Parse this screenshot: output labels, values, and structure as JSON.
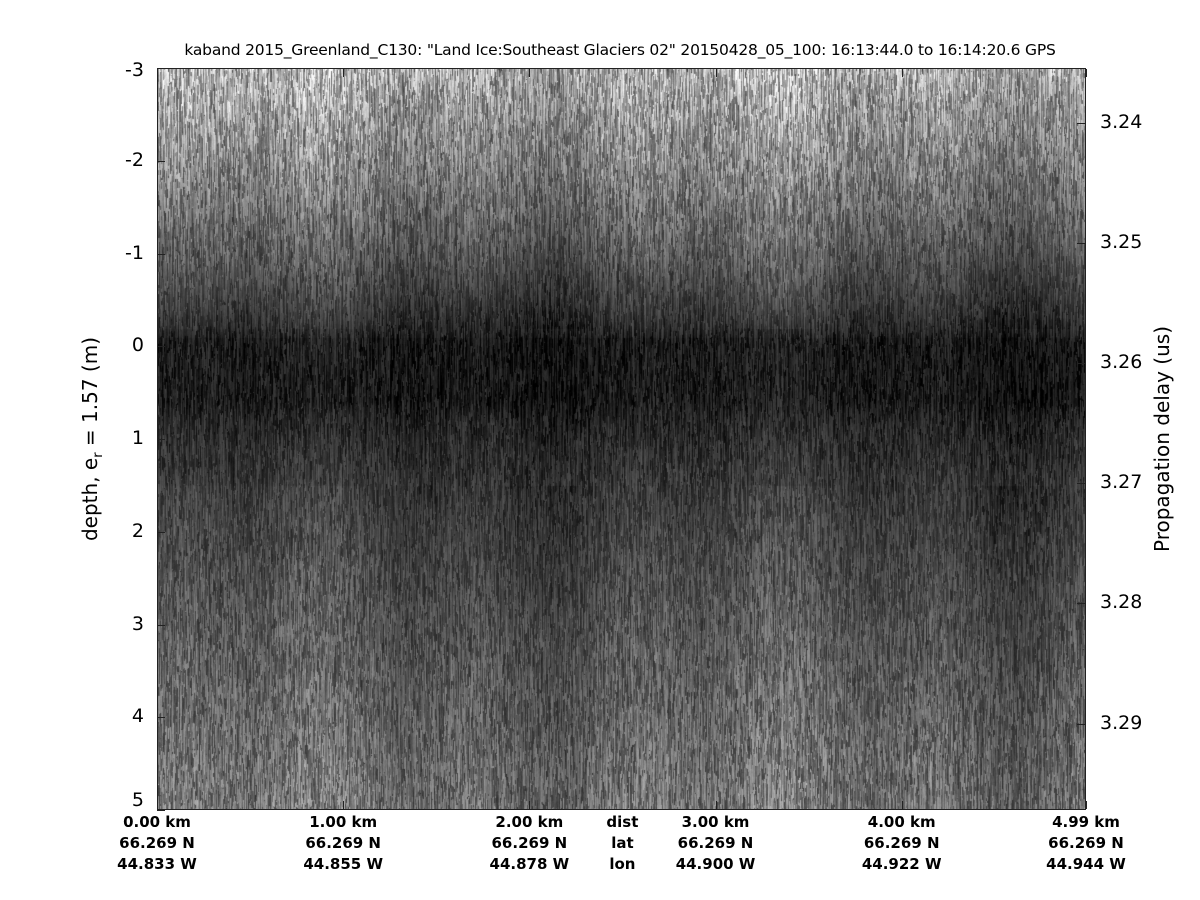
{
  "chart_data": {
    "type": "heatmap",
    "colormap": "gray",
    "title": "kaband 2015_Greenland_C130: \"Land Ice:Southeast  Glaciers 02\"  20150428_05_100: 16:13:44.0 to 16:14:20.6 GPS",
    "ylabel": {
      "prefix": "depth, e",
      "sub": "r",
      "suffix": " = 1.57 (m)"
    },
    "y2label": "Propagation delay (us)",
    "ylim": [
      -3,
      5
    ],
    "y_reversed": true,
    "yticks": [
      "-3",
      "-2",
      "-1",
      "0",
      "1",
      "2",
      "3",
      "4",
      "5"
    ],
    "y2lim": [
      3.2354,
      3.2972
    ],
    "y2ticks": [
      "3.24",
      "3.25",
      "3.26",
      "3.27",
      "3.28",
      "3.29"
    ],
    "xlim": [
      0,
      4.99
    ],
    "xticks": [
      {
        "dist": "0.00 km",
        "lat": "66.269 N",
        "lon": "44.833 W",
        "km": 0
      },
      {
        "dist": "1.00 km",
        "lat": "66.269 N",
        "lon": "44.855 W",
        "km": 1
      },
      {
        "dist": "2.00 km",
        "lat": "66.269 N",
        "lon": "44.878 W",
        "km": 2
      },
      {
        "dist": "3.00 km",
        "lat": "66.269 N",
        "lon": "44.900 W",
        "km": 3
      },
      {
        "dist": "4.00 km",
        "lat": "66.269 N",
        "lon": "44.922 W",
        "km": 4
      },
      {
        "dist": "4.99 km",
        "lat": "66.269 N",
        "lon": "44.944 W",
        "km": 4.99
      }
    ],
    "row_labels": {
      "dist": "dist",
      "lat": "lat",
      "lon": "lon",
      "km": 2.5
    }
  }
}
